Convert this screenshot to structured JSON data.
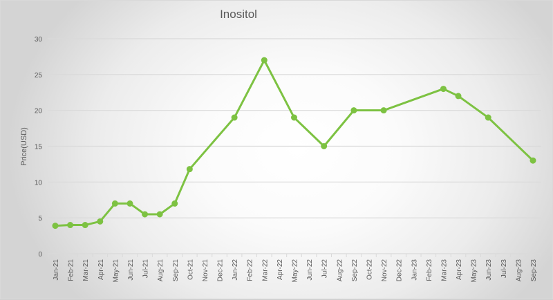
{
  "chart_data": {
    "type": "line",
    "title": "Inositol",
    "xlabel": "",
    "ylabel": "Price(USD)",
    "ylim": [
      0,
      30
    ],
    "yticks": [
      0,
      5,
      10,
      15,
      20,
      25,
      30
    ],
    "grid": true,
    "legend": null,
    "categories": [
      "Jan-21",
      "Feb-21",
      "Mar-21",
      "Apr-21",
      "May-21",
      "Jun-21",
      "Jul-21",
      "Aug-21",
      "Sep-21",
      "Oct-21",
      "Nov-21",
      "Dec-21",
      "Jan-22",
      "Feb-22",
      "Mar-22",
      "Apr-22",
      "May-22",
      "Jun-22",
      "Jul-22",
      "Aug-22",
      "Sep-22",
      "Oct-22",
      "Nov-22",
      "Dec-22",
      "Jan-23",
      "Feb-23",
      "Mar-23",
      "Apr-23",
      "May-23",
      "Jun-23",
      "Jul-23",
      "Aug-23",
      "Sep-23"
    ],
    "series": [
      {
        "name": "Inositol",
        "color": "#7dc242",
        "points": [
          {
            "x": "Jan-21",
            "y": 3.9
          },
          {
            "x": "Feb-21",
            "y": 4.0
          },
          {
            "x": "Mar-21",
            "y": 4.0
          },
          {
            "x": "Apr-21",
            "y": 4.5
          },
          {
            "x": "May-21",
            "y": 7.0
          },
          {
            "x": "Jun-21",
            "y": 7.0
          },
          {
            "x": "Jul-21",
            "y": 5.5
          },
          {
            "x": "Aug-21",
            "y": 5.5
          },
          {
            "x": "Sep-21",
            "y": 7.0
          },
          {
            "x": "Oct-21",
            "y": 11.8
          },
          {
            "x": "Jan-22",
            "y": 19.0
          },
          {
            "x": "Mar-22",
            "y": 27.0
          },
          {
            "x": "May-22",
            "y": 19.0
          },
          {
            "x": "Jul-22",
            "y": 15.0
          },
          {
            "x": "Sep-22",
            "y": 20.0
          },
          {
            "x": "Nov-22",
            "y": 20.0
          },
          {
            "x": "Mar-23",
            "y": 23.0
          },
          {
            "x": "Apr-23",
            "y": 22.0
          },
          {
            "x": "Jun-23",
            "y": 19.0
          },
          {
            "x": "Sep-23",
            "y": 13.0
          }
        ]
      }
    ]
  },
  "colors": {
    "line": "#7dc242",
    "grid": "#d9d9d9",
    "text": "#595959"
  }
}
